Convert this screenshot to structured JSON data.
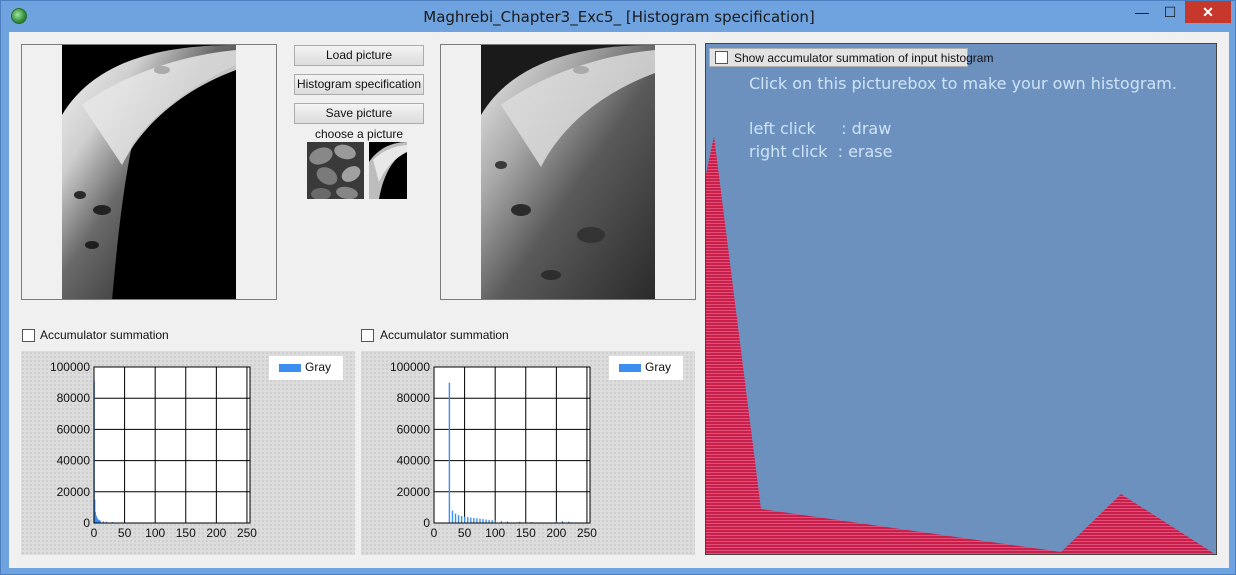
{
  "window": {
    "title": "Maghrebi_Chapter3_Exc5_ [Histogram specification]",
    "controls": {
      "minimize": "—",
      "maximize": "☐",
      "close": "✕"
    }
  },
  "buttons": {
    "load": "Load picture",
    "spec": "Histogram specification",
    "save": "Save picture"
  },
  "choose_label": "choose a picture",
  "left_checkbox": {
    "label": "Accumulator summation",
    "checked": false
  },
  "right_checkbox": {
    "label": "Accumulator summation",
    "checked": false
  },
  "hist_panel": {
    "checkbox_label": "Show accumulator summation of input histogram",
    "checked": false,
    "hint_line1": "Click on this picturebox to make your own histogram.",
    "hint_line2": "left click     : draw",
    "hint_line3": "right click  : erase",
    "fill_color": "#c8204a",
    "background_color": "#6d91bf"
  },
  "chart_data": [
    {
      "type": "bar",
      "title": "",
      "legend": [
        "Gray"
      ],
      "legend_position": "top-right",
      "color": "#3b8ef0",
      "xlim": [
        0,
        255
      ],
      "ylim": [
        0,
        100000
      ],
      "x_ticks": [
        "0",
        "50",
        "100",
        "150",
        "200",
        "250"
      ],
      "y_ticks": [
        "0",
        "20000",
        "40000",
        "60000",
        "80000",
        "100000"
      ],
      "series": [
        {
          "name": "Gray",
          "x": [
            0,
            1,
            2,
            3,
            4,
            5,
            6,
            8,
            10,
            15,
            20,
            30,
            50,
            100,
            150,
            200,
            230,
            250
          ],
          "values": [
            91000,
            15000,
            7000,
            5000,
            4000,
            3000,
            2500,
            2000,
            1500,
            1000,
            800,
            600,
            400,
            300,
            200,
            200,
            500,
            100
          ]
        }
      ]
    },
    {
      "type": "bar",
      "title": "",
      "legend": [
        "Gray"
      ],
      "legend_position": "top-right",
      "color": "#3b8ef0",
      "xlim": [
        0,
        255
      ],
      "ylim": [
        0,
        100000
      ],
      "x_ticks": [
        "0",
        "50",
        "100",
        "150",
        "200",
        "250"
      ],
      "y_ticks": [
        "0",
        "20000",
        "40000",
        "60000",
        "80000",
        "100000"
      ],
      "series": [
        {
          "name": "Gray",
          "x": [
            25,
            30,
            35,
            40,
            45,
            50,
            55,
            60,
            65,
            70,
            75,
            80,
            85,
            90,
            95,
            100,
            110,
            120,
            140,
            160,
            200,
            210,
            220
          ],
          "values": [
            90000,
            8000,
            6000,
            5000,
            4500,
            4000,
            3800,
            3500,
            3200,
            3000,
            2800,
            2500,
            2200,
            2000,
            1800,
            1500,
            1200,
            1000,
            800,
            600,
            1200,
            1200,
            800
          ]
        }
      ]
    }
  ]
}
